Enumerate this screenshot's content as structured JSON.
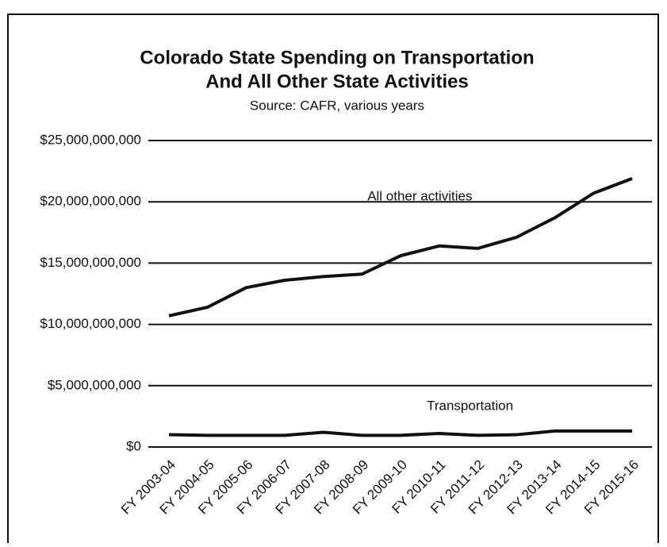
{
  "chart_data": {
    "type": "line",
    "title": "Colorado State Spending on Transportation",
    "title_line2": "And All Other State Activities",
    "subtitle": "Source: CAFR, various years",
    "categories": [
      "FY 2003-04",
      "FY 2004-05",
      "FY 2005-06",
      "FY 2006-07",
      "FY 2007-08",
      "FY 2008-09",
      "FY 2009-10",
      "FY 2010-11",
      "FY 2011-12",
      "FY 2012-13",
      "FY 2013-14",
      "FY 2014-15",
      "FY 2015-16"
    ],
    "series": [
      {
        "name": "All other activities",
        "color": "#111111",
        "values": [
          10700000000,
          11400000000,
          13000000000,
          13600000000,
          13900000000,
          14100000000,
          15600000000,
          16400000000,
          16200000000,
          17100000000,
          18700000000,
          20700000000,
          21900000000
        ]
      },
      {
        "name": "Transportation",
        "color": "#111111",
        "values": [
          1000000000,
          950000000,
          950000000,
          950000000,
          1200000000,
          950000000,
          950000000,
          1100000000,
          950000000,
          1000000000,
          1300000000,
          1300000000,
          1300000000
        ]
      }
    ],
    "ylim": [
      0,
      25000000000
    ],
    "yticks": [
      {
        "value": 0,
        "label": "$0"
      },
      {
        "value": 5000000000,
        "label": "$5,000,000,000"
      },
      {
        "value": 10000000000,
        "label": "$10,000,000,000"
      },
      {
        "value": 15000000000,
        "label": "$15,000,000,000"
      },
      {
        "value": 20000000000,
        "label": "$20,000,000,000"
      },
      {
        "value": 25000000000,
        "label": "$25,000,000,000"
      }
    ],
    "grid": true
  }
}
